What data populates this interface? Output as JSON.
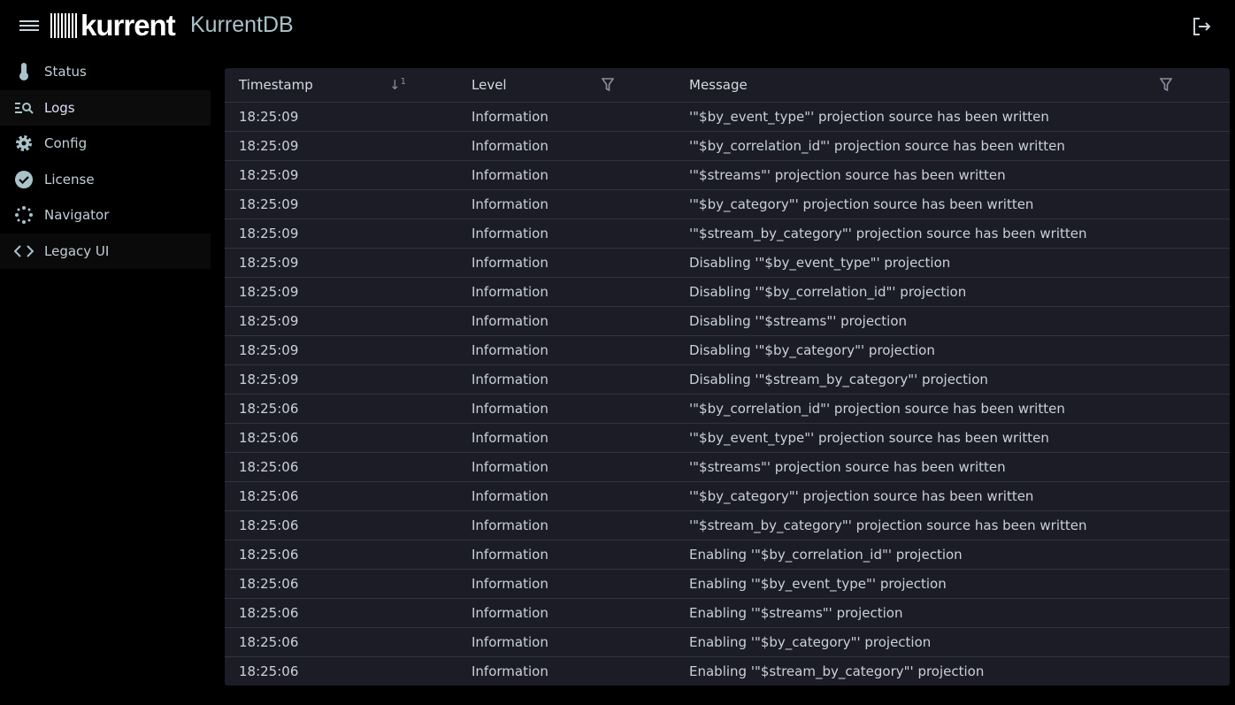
{
  "header": {
    "brand": "kurrent",
    "product": "KurrentDB"
  },
  "sidebar": {
    "items": [
      {
        "label": "Status",
        "icon": "thermometer-icon"
      },
      {
        "label": "Logs",
        "icon": "logs-search-icon",
        "active": true
      },
      {
        "label": "Config",
        "icon": "gear-icon"
      },
      {
        "label": "License",
        "icon": "verified-badge-icon"
      },
      {
        "label": "Navigator",
        "icon": "navigator-icon"
      },
      {
        "label": "Legacy UI",
        "icon": "code-icon"
      }
    ]
  },
  "table": {
    "columns": {
      "timestamp": "Timestamp",
      "sort_index": "1",
      "level": "Level",
      "message": "Message"
    },
    "rows": [
      [
        "18:25:09",
        "Information",
        "'\"$by_event_type\"' projection source has been written"
      ],
      [
        "18:25:09",
        "Information",
        "'\"$by_correlation_id\"' projection source has been written"
      ],
      [
        "18:25:09",
        "Information",
        "'\"$streams\"' projection source has been written"
      ],
      [
        "18:25:09",
        "Information",
        "'\"$by_category\"' projection source has been written"
      ],
      [
        "18:25:09",
        "Information",
        "'\"$stream_by_category\"' projection source has been written"
      ],
      [
        "18:25:09",
        "Information",
        "Disabling '\"$by_event_type\"' projection"
      ],
      [
        "18:25:09",
        "Information",
        "Disabling '\"$by_correlation_id\"' projection"
      ],
      [
        "18:25:09",
        "Information",
        "Disabling '\"$streams\"' projection"
      ],
      [
        "18:25:09",
        "Information",
        "Disabling '\"$by_category\"' projection"
      ],
      [
        "18:25:09",
        "Information",
        "Disabling '\"$stream_by_category\"' projection"
      ],
      [
        "18:25:06",
        "Information",
        "'\"$by_correlation_id\"' projection source has been written"
      ],
      [
        "18:25:06",
        "Information",
        "'\"$by_event_type\"' projection source has been written"
      ],
      [
        "18:25:06",
        "Information",
        "'\"$streams\"' projection source has been written"
      ],
      [
        "18:25:06",
        "Information",
        "'\"$by_category\"' projection source has been written"
      ],
      [
        "18:25:06",
        "Information",
        "'\"$stream_by_category\"' projection source has been written"
      ],
      [
        "18:25:06",
        "Information",
        "Enabling '\"$by_correlation_id\"' projection"
      ],
      [
        "18:25:06",
        "Information",
        "Enabling '\"$by_event_type\"' projection"
      ],
      [
        "18:25:06",
        "Information",
        "Enabling '\"$streams\"' projection"
      ],
      [
        "18:25:06",
        "Information",
        "Enabling '\"$by_category\"' projection"
      ],
      [
        "18:25:06",
        "Information",
        "Enabling '\"$stream_by_category\"' projection"
      ]
    ]
  }
}
